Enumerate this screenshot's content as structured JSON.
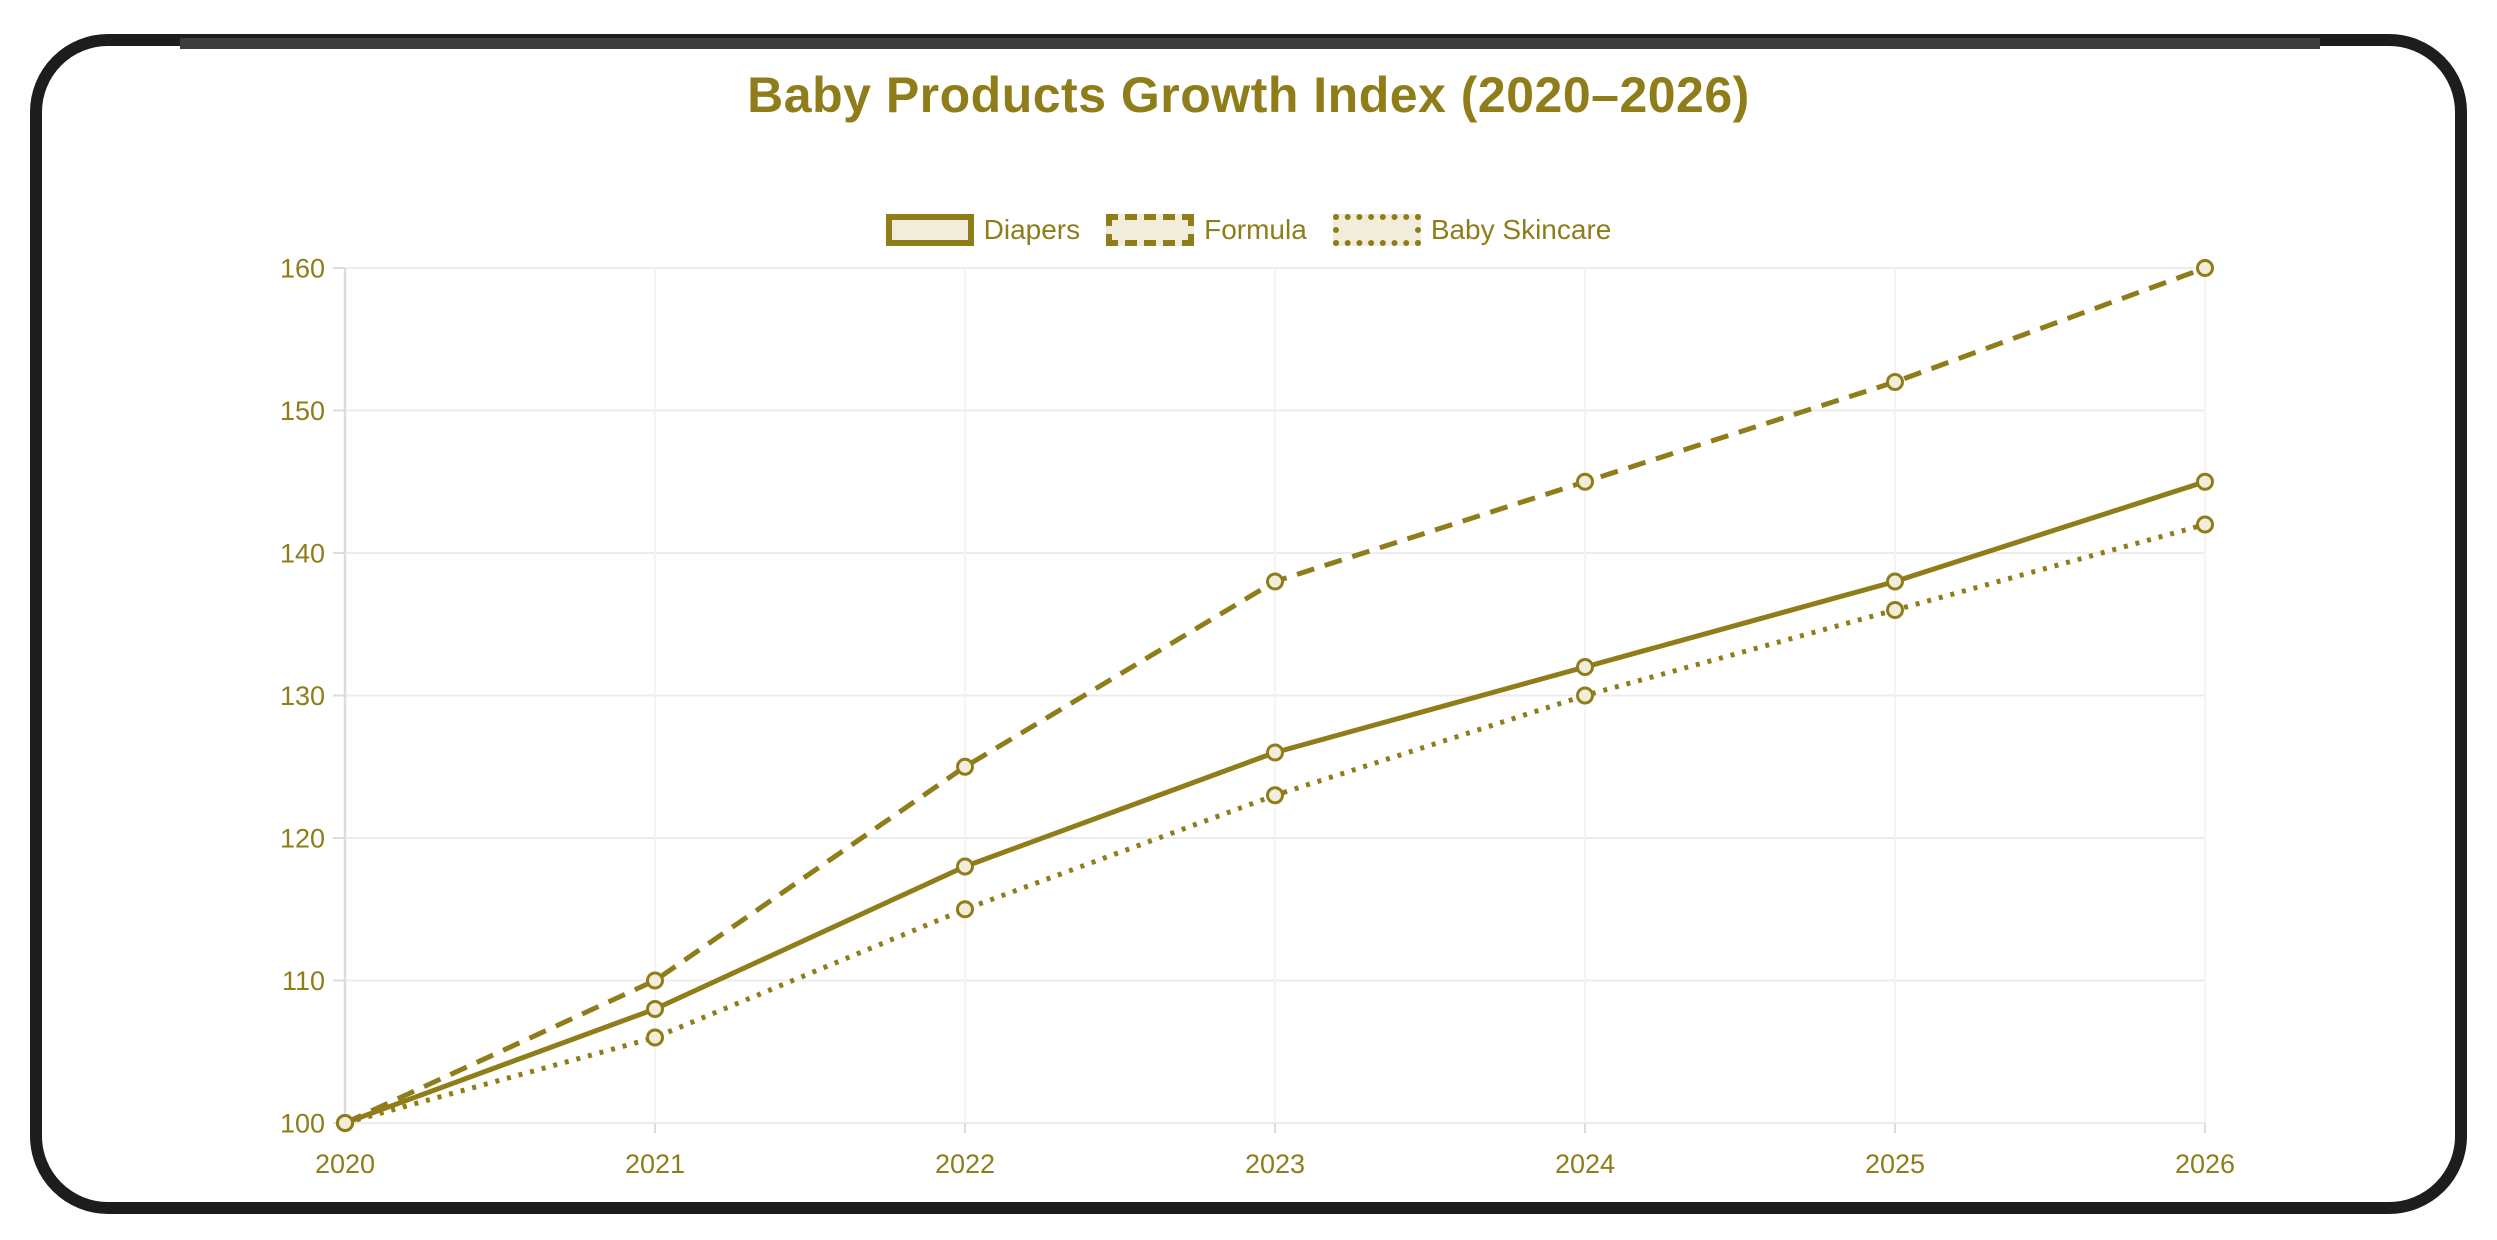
{
  "window": {
    "frame_color": "#1d1d1d",
    "background_color": "#ffffff"
  },
  "colors": {
    "accent": "#8F7D1A",
    "swatch_fill": "#F2EDDA",
    "marker_fill": "#F2EDDA",
    "gridline": "#ececec",
    "vertical_gridline": "#f4f4f4",
    "axis_line": "#dcdcdc"
  },
  "chart_data": {
    "type": "line",
    "title": "Baby Products Growth Index (2020–2026)",
    "xlabel": "",
    "ylabel": "",
    "categories": [
      "2020",
      "2021",
      "2022",
      "2023",
      "2024",
      "2025",
      "2026"
    ],
    "series": [
      {
        "name": "Diapers",
        "style": "solid",
        "values": [
          100,
          108,
          118,
          126,
          132,
          138,
          145
        ]
      },
      {
        "name": "Formula",
        "style": "dashed",
        "values": [
          100,
          110,
          125,
          138,
          145,
          152,
          160
        ]
      },
      {
        "name": "Baby Skincare",
        "style": "dotted",
        "values": [
          100,
          106,
          115,
          123,
          130,
          136,
          142
        ]
      }
    ],
    "ylim": [
      100,
      160
    ],
    "y_ticks": [
      100,
      110,
      120,
      130,
      140,
      150,
      160
    ],
    "grid": true,
    "legend_position": "top"
  }
}
